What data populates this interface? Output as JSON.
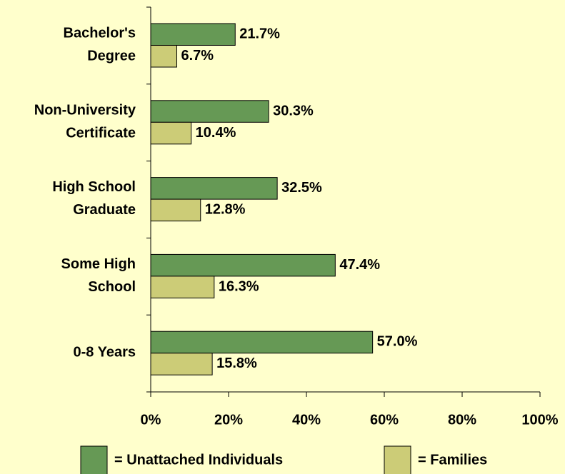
{
  "chart_data": {
    "type": "hbar",
    "categories": [
      "Bachelor's\nDegree",
      "Non-University\nCertificate",
      "High School\nGraduate",
      "Some High\nSchool",
      "0-8 Years"
    ],
    "series": [
      {
        "name": "= Unattached Individuals",
        "color": "#669955",
        "values": [
          21.7,
          30.3,
          32.5,
          47.4,
          57.0
        ],
        "value_labels": [
          "21.7%",
          "30.3%",
          "32.5%",
          "47.4%",
          "57.0%"
        ]
      },
      {
        "name": "= Families",
        "color": "#cccc77",
        "values": [
          6.7,
          10.4,
          12.8,
          16.3,
          15.8
        ],
        "value_labels": [
          "6.7%",
          "10.4%",
          "12.8%",
          "16.3%",
          "15.8%"
        ]
      }
    ],
    "xlim": [
      0,
      100
    ],
    "xticks": [
      {
        "value": 0,
        "label": "0%"
      },
      {
        "value": 20,
        "label": "20%"
      },
      {
        "value": 40,
        "label": "40%"
      },
      {
        "value": 60,
        "label": "60%"
      },
      {
        "value": 80,
        "label": "80%"
      },
      {
        "value": 100,
        "label": "100%"
      }
    ]
  }
}
